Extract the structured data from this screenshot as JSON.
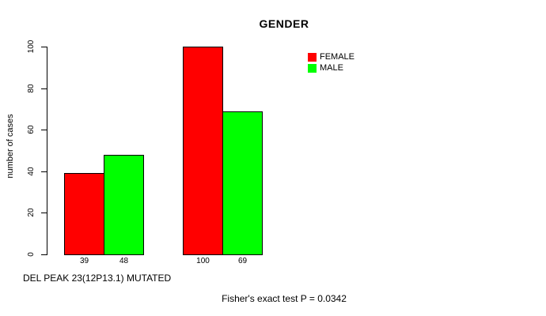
{
  "chart_data": {
    "type": "bar",
    "title": "GENDER",
    "ylabel": "number of cases",
    "xlabel": "DEL PEAK 23(12P13.1) MUTATED",
    "annotation": "Fisher's exact test P = 0.0342",
    "ylim": [
      0,
      100
    ],
    "yticks": [
      0,
      20,
      40,
      60,
      80,
      100
    ],
    "grid": false,
    "legend_position": "top-right",
    "series": [
      {
        "name": "FEMALE",
        "color": "#ff0000",
        "values": [
          39,
          100
        ]
      },
      {
        "name": "MALE",
        "color": "#00ff00",
        "values": [
          48,
          69
        ]
      }
    ],
    "bar_value_labels": [
      "39",
      "48",
      "100",
      "69"
    ],
    "axis_color": "#000000",
    "background_color": "#ffffff"
  }
}
